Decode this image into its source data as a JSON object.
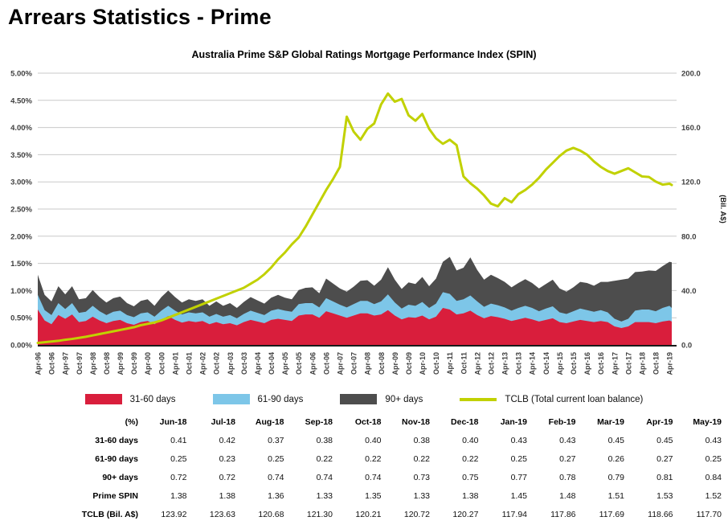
{
  "page": {
    "title": "Arrears Statistics - Prime"
  },
  "chart": {
    "title": "Australia Prime S&P Global Ratings Mortgage Performance Index (SPIN)",
    "left_axis": {
      "min": 0,
      "max": 5,
      "step": 0.5,
      "format": "percent",
      "tick_labels": [
        "0.00%",
        "0.50%",
        "1.00%",
        "1.50%",
        "2.00%",
        "2.50%",
        "3.00%",
        "3.50%",
        "4.00%",
        "4.50%",
        "5.00%"
      ]
    },
    "right_axis": {
      "min": 0,
      "max": 200,
      "step": 40,
      "title": "(Bil. A$)",
      "tick_labels": [
        "0.0",
        "40.0",
        "80.0",
        "120.0",
        "160.0",
        "200.0"
      ]
    },
    "colors": {
      "red": "#D91E3C",
      "blue": "#7DC6E8",
      "gray": "#4D4D4D",
      "tclb": "#C1D101",
      "grid": "#c9c9c9",
      "axis": "#1a1a1a",
      "tick_text": "#404040"
    },
    "legend": [
      {
        "label": "31-60 days",
        "color": "#D91E3C",
        "shape": "rect"
      },
      {
        "label": "61-90 days",
        "color": "#7DC6E8",
        "shape": "rect"
      },
      {
        "label": "90+ days",
        "color": "#4D4D4D",
        "shape": "rect"
      },
      {
        "label": "TCLB (Total current loan balance)",
        "color": "#C1D101",
        "shape": "line"
      }
    ]
  },
  "chart_data": {
    "type": "area",
    "title": "Australia Prime S&P Global Ratings Mortgage Performance Index (SPIN)",
    "xlabel": "",
    "ylabel_left": "%",
    "ylabel_right": "(Bil. A$)",
    "ylim_left": [
      0,
      5
    ],
    "ylim_right": [
      0,
      200
    ],
    "grid": true,
    "legend_position": "bottom",
    "x_tick_labels": [
      "Apr-96",
      "Oct-96",
      "Apr-97",
      "Oct-97",
      "Apr-98",
      "Oct-98",
      "Apr-99",
      "Oct-99",
      "Apr-00",
      "Oct-00",
      "Apr-01",
      "Oct-01",
      "Apr-02",
      "Oct-02",
      "Apr-03",
      "Oct-03",
      "Apr-04",
      "Oct-04",
      "Apr-05",
      "Oct-05",
      "Apr-06",
      "Oct-06",
      "Apr-07",
      "Oct-07",
      "Apr-08",
      "Oct-08",
      "Apr-09",
      "Oct-09",
      "Apr-10",
      "Oct-10",
      "Apr-11",
      "Oct-11",
      "Apr-12",
      "Oct-12",
      "Apr-13",
      "Oct-13",
      "Apr-14",
      "Oct-14",
      "Apr-15",
      "Oct-15",
      "Apr-16",
      "Oct-16",
      "Apr-17",
      "Oct-17",
      "Apr-18",
      "Oct-18",
      "Apr-19"
    ],
    "x": [
      "Apr-96",
      "Jul-96",
      "Oct-96",
      "Jan-97",
      "Apr-97",
      "Jul-97",
      "Oct-97",
      "Jan-98",
      "Apr-98",
      "Jul-98",
      "Oct-98",
      "Jan-99",
      "Apr-99",
      "Jul-99",
      "Oct-99",
      "Jan-00",
      "Apr-00",
      "Jul-00",
      "Oct-00",
      "Jan-01",
      "Apr-01",
      "Jul-01",
      "Oct-01",
      "Jan-02",
      "Apr-02",
      "Jul-02",
      "Oct-02",
      "Jan-03",
      "Apr-03",
      "Jul-03",
      "Oct-03",
      "Jan-04",
      "Apr-04",
      "Jul-04",
      "Oct-04",
      "Jan-05",
      "Apr-05",
      "Jul-05",
      "Oct-05",
      "Jan-06",
      "Apr-06",
      "Jul-06",
      "Oct-06",
      "Jan-07",
      "Apr-07",
      "Jul-07",
      "Oct-07",
      "Jan-08",
      "Apr-08",
      "Jul-08",
      "Oct-08",
      "Jan-09",
      "Apr-09",
      "Jul-09",
      "Oct-09",
      "Jan-10",
      "Apr-10",
      "Jul-10",
      "Oct-10",
      "Jan-11",
      "Apr-11",
      "Jul-11",
      "Oct-11",
      "Jan-12",
      "Apr-12",
      "Jul-12",
      "Oct-12",
      "Jan-13",
      "Apr-13",
      "Jul-13",
      "Oct-13",
      "Jan-14",
      "Apr-14",
      "Jul-14",
      "Oct-14",
      "Jan-15",
      "Apr-15",
      "Jul-15",
      "Oct-15",
      "Jan-16",
      "Apr-16",
      "Jul-16",
      "Oct-16",
      "Jan-17",
      "Apr-17",
      "Jul-17",
      "Oct-17",
      "Jan-18",
      "Apr-18",
      "Jul-18",
      "Oct-18",
      "Jan-19",
      "Apr-19",
      "May-19"
    ],
    "x_months": [
      0,
      3,
      6,
      9,
      12,
      15,
      18,
      21,
      24,
      27,
      30,
      33,
      36,
      39,
      42,
      45,
      48,
      51,
      54,
      57,
      60,
      63,
      66,
      69,
      72,
      75,
      78,
      81,
      84,
      87,
      90,
      93,
      96,
      99,
      102,
      105,
      108,
      111,
      114,
      117,
      120,
      123,
      126,
      129,
      132,
      135,
      138,
      141,
      144,
      147,
      150,
      153,
      156,
      159,
      162,
      165,
      168,
      171,
      174,
      177,
      180,
      183,
      186,
      189,
      192,
      195,
      198,
      201,
      204,
      207,
      210,
      213,
      216,
      219,
      222,
      225,
      228,
      231,
      234,
      237,
      240,
      243,
      246,
      249,
      252,
      255,
      258,
      261,
      264,
      267,
      270,
      273,
      276,
      277
    ],
    "series": [
      {
        "name": "31-60 days",
        "type": "stacked-area",
        "axis": "left",
        "color": "#D91E3C",
        "values": [
          0.65,
          0.45,
          0.38,
          0.55,
          0.48,
          0.56,
          0.42,
          0.44,
          0.52,
          0.45,
          0.4,
          0.44,
          0.46,
          0.4,
          0.37,
          0.42,
          0.44,
          0.38,
          0.46,
          0.53,
          0.46,
          0.41,
          0.44,
          0.42,
          0.44,
          0.38,
          0.42,
          0.38,
          0.4,
          0.36,
          0.42,
          0.46,
          0.43,
          0.4,
          0.46,
          0.48,
          0.46,
          0.44,
          0.54,
          0.56,
          0.56,
          0.5,
          0.62,
          0.58,
          0.54,
          0.5,
          0.54,
          0.58,
          0.58,
          0.54,
          0.56,
          0.64,
          0.54,
          0.47,
          0.51,
          0.5,
          0.54,
          0.47,
          0.52,
          0.68,
          0.65,
          0.56,
          0.58,
          0.63,
          0.55,
          0.49,
          0.53,
          0.51,
          0.48,
          0.44,
          0.47,
          0.5,
          0.47,
          0.43,
          0.46,
          0.49,
          0.42,
          0.4,
          0.43,
          0.46,
          0.44,
          0.42,
          0.44,
          0.42,
          0.34,
          0.31,
          0.34,
          0.42,
          0.42,
          0.42,
          0.4,
          0.43,
          0.45,
          0.43
        ]
      },
      {
        "name": "61-90 days",
        "type": "stacked-area",
        "axis": "left",
        "color": "#7DC6E8",
        "values": [
          0.27,
          0.19,
          0.17,
          0.22,
          0.18,
          0.21,
          0.17,
          0.17,
          0.2,
          0.17,
          0.15,
          0.17,
          0.17,
          0.15,
          0.14,
          0.16,
          0.16,
          0.14,
          0.17,
          0.19,
          0.17,
          0.15,
          0.16,
          0.16,
          0.16,
          0.14,
          0.15,
          0.14,
          0.15,
          0.13,
          0.15,
          0.17,
          0.16,
          0.15,
          0.17,
          0.18,
          0.17,
          0.17,
          0.21,
          0.21,
          0.21,
          0.19,
          0.24,
          0.22,
          0.2,
          0.19,
          0.21,
          0.23,
          0.23,
          0.21,
          0.24,
          0.29,
          0.24,
          0.2,
          0.23,
          0.22,
          0.25,
          0.21,
          0.24,
          0.29,
          0.29,
          0.25,
          0.26,
          0.28,
          0.25,
          0.21,
          0.23,
          0.22,
          0.21,
          0.19,
          0.21,
          0.22,
          0.21,
          0.19,
          0.21,
          0.22,
          0.18,
          0.17,
          0.19,
          0.21,
          0.2,
          0.19,
          0.2,
          0.18,
          0.14,
          0.12,
          0.14,
          0.21,
          0.23,
          0.23,
          0.22,
          0.25,
          0.27,
          0.25
        ]
      },
      {
        "name": "90+ days",
        "type": "stacked-area",
        "axis": "left",
        "color": "#4D4D4D",
        "values": [
          0.37,
          0.28,
          0.25,
          0.31,
          0.27,
          0.31,
          0.25,
          0.25,
          0.29,
          0.26,
          0.23,
          0.25,
          0.26,
          0.22,
          0.2,
          0.23,
          0.24,
          0.2,
          0.25,
          0.28,
          0.25,
          0.22,
          0.24,
          0.23,
          0.24,
          0.2,
          0.23,
          0.2,
          0.22,
          0.19,
          0.22,
          0.25,
          0.23,
          0.21,
          0.24,
          0.26,
          0.24,
          0.23,
          0.26,
          0.28,
          0.29,
          0.26,
          0.36,
          0.33,
          0.3,
          0.29,
          0.32,
          0.37,
          0.38,
          0.34,
          0.4,
          0.5,
          0.42,
          0.36,
          0.41,
          0.4,
          0.46,
          0.4,
          0.46,
          0.56,
          0.68,
          0.56,
          0.58,
          0.7,
          0.58,
          0.5,
          0.53,
          0.5,
          0.47,
          0.43,
          0.46,
          0.49,
          0.46,
          0.42,
          0.45,
          0.49,
          0.44,
          0.41,
          0.44,
          0.49,
          0.5,
          0.48,
          0.52,
          0.56,
          0.7,
          0.77,
          0.74,
          0.71,
          0.7,
          0.72,
          0.74,
          0.77,
          0.81,
          0.84
        ]
      },
      {
        "name": "TCLB (Total current loan balance)",
        "type": "line",
        "axis": "right",
        "color": "#C1D101",
        "values": [
          1.5,
          2.0,
          2.5,
          3.0,
          3.8,
          4.4,
          5.2,
          6.0,
          7.0,
          8.0,
          9.0,
          10.0,
          11.0,
          12.0,
          13.0,
          14.5,
          15.5,
          16.5,
          18.0,
          20.0,
          22.0,
          24.0,
          26.0,
          28.0,
          30.0,
          32.0,
          34.0,
          36.0,
          38.0,
          40.0,
          42.0,
          45.0,
          48.0,
          52.0,
          57.0,
          63.0,
          68.0,
          74.0,
          79.0,
          87.0,
          96.0,
          105.0,
          114.0,
          122.0,
          131.0,
          168.0,
          157.0,
          151.0,
          159.0,
          163.0,
          177.0,
          185.0,
          179.0,
          181.0,
          169.0,
          165.0,
          170.0,
          159.0,
          152.0,
          148.0,
          151.0,
          147.0,
          124.0,
          119.0,
          115.0,
          110.0,
          104.0,
          102.0,
          108.0,
          105.0,
          111.0,
          114.0,
          118.0,
          123.0,
          129.0,
          134.0,
          139.0,
          143.0,
          145.0,
          143.0,
          140.0,
          135.0,
          131.0,
          128.0,
          126.0,
          128.0,
          130.0,
          127.0,
          124.0,
          123.63,
          120.21,
          117.94,
          118.66,
          117.7
        ]
      }
    ]
  },
  "table": {
    "header": [
      "(%)",
      "Jun-18",
      "Jul-18",
      "Aug-18",
      "Sep-18",
      "Oct-18",
      "Nov-18",
      "Dec-18",
      "Jan-19",
      "Feb-19",
      "Mar-19",
      "Apr-19",
      "May-19"
    ],
    "rows": [
      {
        "label": "31-60 days",
        "values": [
          "0.41",
          "0.42",
          "0.37",
          "0.38",
          "0.40",
          "0.38",
          "0.40",
          "0.43",
          "0.43",
          "0.45",
          "0.45",
          "0.43"
        ]
      },
      {
        "label": "61-90 days",
        "values": [
          "0.25",
          "0.23",
          "0.25",
          "0.22",
          "0.22",
          "0.22",
          "0.22",
          "0.25",
          "0.27",
          "0.26",
          "0.27",
          "0.25"
        ]
      },
      {
        "label": "90+ days",
        "values": [
          "0.72",
          "0.72",
          "0.74",
          "0.74",
          "0.74",
          "0.73",
          "0.75",
          "0.77",
          "0.78",
          "0.79",
          "0.81",
          "0.84"
        ]
      },
      {
        "label": "Prime SPIN",
        "values": [
          "1.38",
          "1.38",
          "1.36",
          "1.33",
          "1.35",
          "1.33",
          "1.38",
          "1.45",
          "1.48",
          "1.51",
          "1.53",
          "1.52"
        ]
      },
      {
        "label": "TCLB (Bil. A$)",
        "values": [
          "123.92",
          "123.63",
          "120.68",
          "121.30",
          "120.21",
          "120.72",
          "120.27",
          "117.94",
          "117.86",
          "117.69",
          "118.66",
          "117.70"
        ]
      }
    ]
  }
}
